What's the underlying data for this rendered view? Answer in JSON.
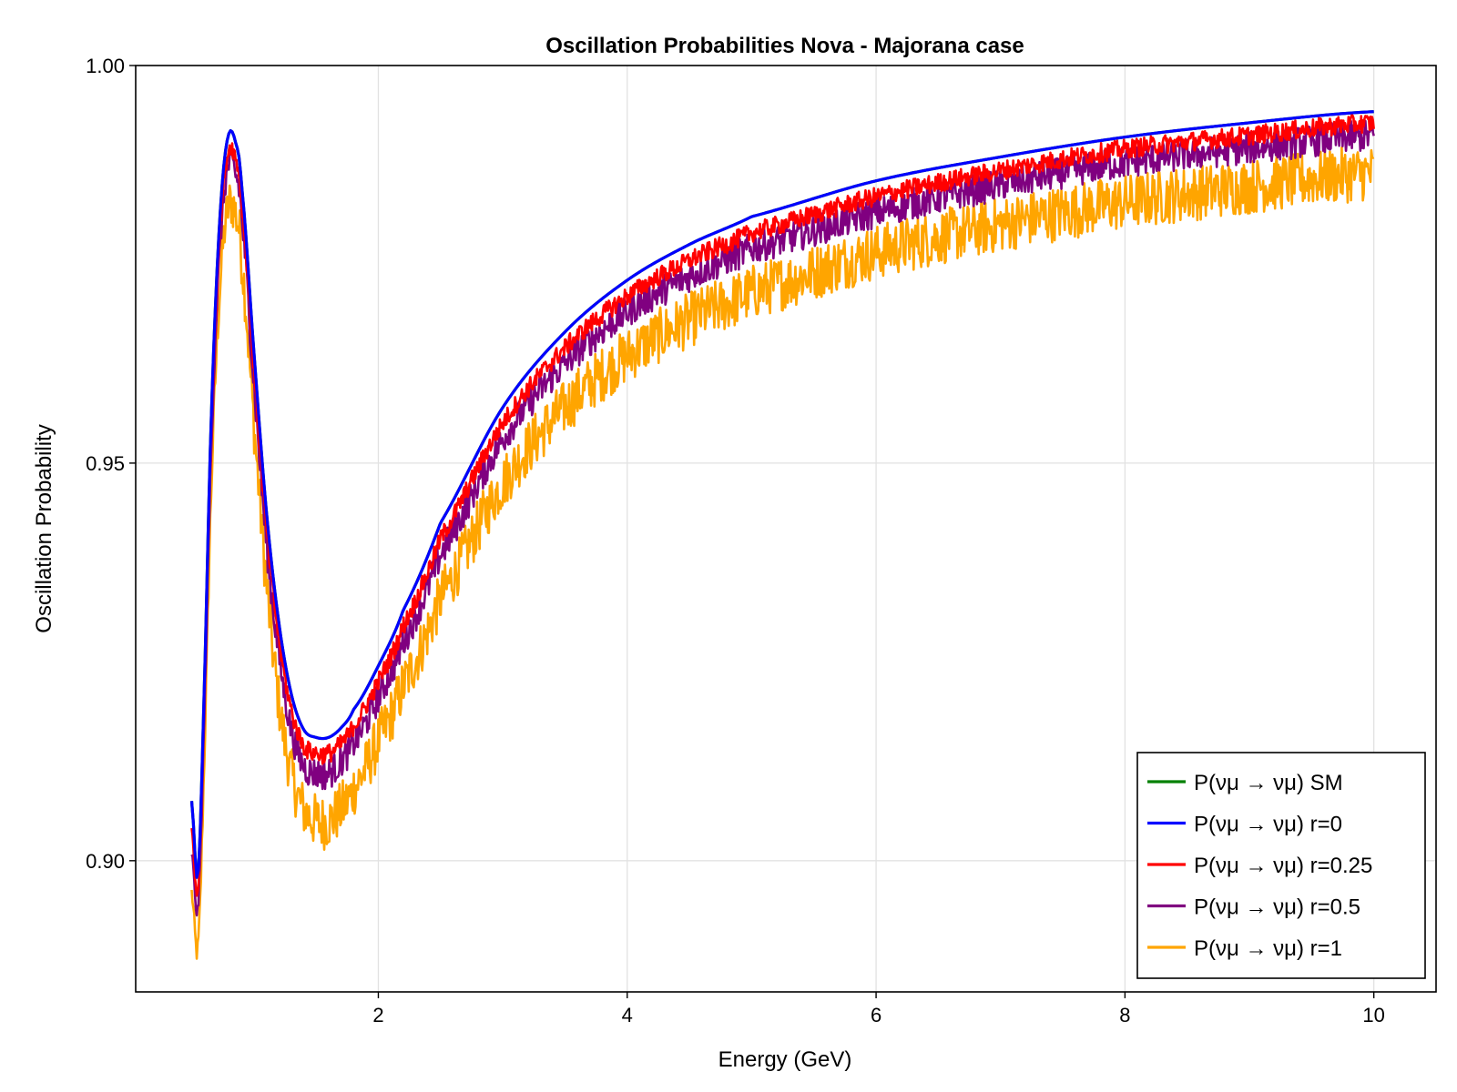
{
  "chart_data": {
    "type": "line",
    "title": "Oscillation Probabilities Nova - Majorana case",
    "xlabel": "Energy (GeV)",
    "ylabel": "Oscillation Probability",
    "xlim": [
      0.05,
      10.5
    ],
    "ylim": [
      0.8835,
      1.0
    ],
    "xticks": [
      2,
      4,
      6,
      8,
      10
    ],
    "xtick_labels": [
      "2",
      "4",
      "6",
      "8",
      "10"
    ],
    "yticks": [
      0.9,
      0.95,
      1.0
    ],
    "ytick_labels": [
      "0.90",
      "0.95",
      "1.00"
    ],
    "grid": true,
    "legend_position": "bottom-right",
    "series": [
      {
        "name": "P(νμ → νμ) SM",
        "color": "#008000",
        "x": [
          0.5,
          0.55,
          0.6,
          0.65,
          0.7,
          0.75,
          0.8,
          0.85,
          0.9,
          1.0,
          1.1,
          1.2,
          1.3,
          1.4,
          1.5,
          1.6,
          1.7,
          1.8,
          2.0,
          2.2,
          2.5,
          3.0,
          3.5,
          4.0,
          4.5,
          5.0,
          6.0,
          7.0,
          8.0,
          9.0,
          10.0
        ],
        "y": [
          0.9075,
          0.898,
          0.921,
          0.952,
          0.973,
          0.986,
          0.9915,
          0.9905,
          0.985,
          0.964,
          0.944,
          0.93,
          0.921,
          0.9165,
          0.9155,
          0.9155,
          0.9167,
          0.919,
          0.9245,
          0.9315,
          0.9425,
          0.957,
          0.9665,
          0.973,
          0.9775,
          0.981,
          0.9855,
          0.9885,
          0.991,
          0.9928,
          0.9942
        ]
      },
      {
        "name": "P(νμ → νμ) r=0",
        "color": "#0000ff",
        "x": [
          0.5,
          0.55,
          0.6,
          0.65,
          0.7,
          0.75,
          0.8,
          0.85,
          0.9,
          1.0,
          1.1,
          1.2,
          1.3,
          1.4,
          1.5,
          1.6,
          1.7,
          1.8,
          2.0,
          2.2,
          2.5,
          3.0,
          3.5,
          4.0,
          4.5,
          5.0,
          6.0,
          7.0,
          8.0,
          9.0,
          10.0
        ],
        "y": [
          0.9075,
          0.898,
          0.921,
          0.952,
          0.973,
          0.986,
          0.9915,
          0.9905,
          0.985,
          0.964,
          0.944,
          0.93,
          0.921,
          0.9165,
          0.9155,
          0.9155,
          0.9167,
          0.919,
          0.9245,
          0.9315,
          0.9425,
          0.957,
          0.9665,
          0.973,
          0.9775,
          0.981,
          0.9855,
          0.9885,
          0.991,
          0.9928,
          0.9942
        ]
      },
      {
        "name": "P(νμ →  νμ) r=0.25",
        "color": "#ff0000",
        "noise": 0.0012,
        "x": [
          0.5,
          0.55,
          0.6,
          0.65,
          0.7,
          0.75,
          0.8,
          0.85,
          0.9,
          1.0,
          1.1,
          1.2,
          1.3,
          1.4,
          1.5,
          1.6,
          1.7,
          1.8,
          2.0,
          2.2,
          2.5,
          3.0,
          3.5,
          4.0,
          4.5,
          5.0,
          6.0,
          7.0,
          8.0,
          9.0,
          10.0
        ],
        "y": [
          0.904,
          0.896,
          0.919,
          0.95,
          0.971,
          0.984,
          0.9895,
          0.9885,
          0.983,
          0.962,
          0.942,
          0.928,
          0.919,
          0.9145,
          0.9135,
          0.9135,
          0.9147,
          0.917,
          0.9225,
          0.9295,
          0.9405,
          0.955,
          0.9645,
          0.971,
          0.9755,
          0.979,
          0.9835,
          0.9868,
          0.9895,
          0.9912,
          0.9928
        ]
      },
      {
        "name": "P(νμ →  νμ) r=0.5",
        "color": "#800080",
        "noise": 0.002,
        "x": [
          0.5,
          0.55,
          0.6,
          0.65,
          0.7,
          0.75,
          0.8,
          0.85,
          0.9,
          1.0,
          1.1,
          1.2,
          1.3,
          1.4,
          1.5,
          1.6,
          1.7,
          1.8,
          2.0,
          2.2,
          2.5,
          3.0,
          3.5,
          4.0,
          4.5,
          5.0,
          6.0,
          7.0,
          8.0,
          9.0,
          10.0
        ],
        "y": [
          0.901,
          0.894,
          0.917,
          0.948,
          0.969,
          0.982,
          0.9875,
          0.9865,
          0.981,
          0.96,
          0.94,
          0.926,
          0.9165,
          0.912,
          0.911,
          0.911,
          0.9125,
          0.9148,
          0.9205,
          0.9275,
          0.9385,
          0.953,
          0.9625,
          0.969,
          0.9735,
          0.977,
          0.9815,
          0.985,
          0.9878,
          0.9896,
          0.9912
        ]
      },
      {
        "name": "P(νμ →  νμ) r=1",
        "color": "#ffa500",
        "noise": 0.0035,
        "x": [
          0.5,
          0.55,
          0.6,
          0.65,
          0.7,
          0.75,
          0.8,
          0.85,
          0.9,
          1.0,
          1.1,
          1.2,
          1.3,
          1.4,
          1.5,
          1.6,
          1.7,
          1.8,
          2.0,
          2.2,
          2.5,
          3.0,
          3.5,
          4.0,
          4.5,
          5.0,
          6.0,
          7.0,
          8.0,
          9.0,
          10.0
        ],
        "y": [
          0.896,
          0.889,
          0.912,
          0.943,
          0.964,
          0.977,
          0.9825,
          0.9815,
          0.976,
          0.955,
          0.935,
          0.92,
          0.911,
          0.9065,
          0.905,
          0.905,
          0.9065,
          0.909,
          0.915,
          0.922,
          0.933,
          0.9475,
          0.957,
          0.9635,
          0.968,
          0.9715,
          0.9765,
          0.98,
          0.9828,
          0.9848,
          0.9865
        ]
      }
    ]
  }
}
